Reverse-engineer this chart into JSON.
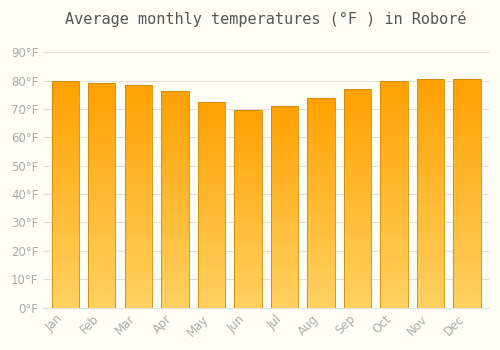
{
  "title": "Average monthly temperatures (°F ) in Roboré",
  "months": [
    "Jan",
    "Feb",
    "Mar",
    "Apr",
    "May",
    "Jun",
    "Jul",
    "Aug",
    "Sep",
    "Oct",
    "Nov",
    "Dec"
  ],
  "values": [
    80.0,
    79.0,
    78.5,
    76.5,
    72.5,
    69.5,
    71.0,
    74.0,
    77.0,
    80.0,
    80.5,
    80.5
  ],
  "bar_color_top": "#FFA000",
  "bar_color_bottom": "#FFD060",
  "background_color": "#FFFFF5",
  "grid_color": "#DDDDDD",
  "yticks": [
    0,
    10,
    20,
    30,
    40,
    50,
    60,
    70,
    80,
    90
  ],
  "ylim": [
    0,
    95
  ],
  "title_fontsize": 11,
  "tick_fontsize": 8.5,
  "tick_color": "#AAAAAA",
  "edge_color": "#CC8800",
  "n_grad": 40
}
